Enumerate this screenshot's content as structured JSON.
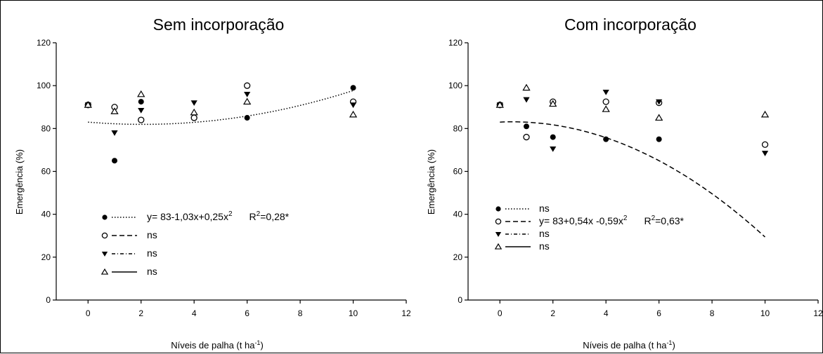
{
  "chart_data": [
    {
      "type": "scatter",
      "title": "Sem incorporação",
      "xlabel": "Níveis de palha (t ha",
      "xlabel_sup": "-1",
      "xlabel_end": ")",
      "ylabel": "Emergência (%)",
      "xlim": [
        -1.2,
        12
      ],
      "ylim": [
        0,
        120
      ],
      "x_ticks": [
        0,
        2,
        4,
        6,
        8,
        10,
        12
      ],
      "y_ticks": [
        0,
        20,
        40,
        60,
        80,
        100,
        120
      ],
      "grid": false,
      "legend_position": "bottom-left",
      "series": [
        {
          "marker": "filled-circle",
          "line_style": "dotted",
          "x": [
            0,
            1,
            2,
            4,
            6,
            10
          ],
          "y": [
            91,
            65,
            92.5,
            85,
            85,
            99
          ],
          "fit": {
            "a": 83,
            "b": -1.03,
            "c": 0.25,
            "range": [
              0,
              10
            ]
          },
          "legend_text": "y= 83-1,03x+0,25x",
          "legend_sup": "2",
          "legend_r2": "R",
          "legend_r2_sup": "2",
          "legend_r2_value": "=0,28*"
        },
        {
          "marker": "open-circle",
          "line_style": "dashed",
          "x": [
            0,
            1,
            2,
            4,
            6,
            10
          ],
          "y": [
            91,
            90,
            84,
            85,
            100,
            92.5
          ],
          "legend_text": "ns"
        },
        {
          "marker": "filled-triangle-down",
          "line_style": "dash-dot",
          "x": [
            0,
            1,
            2,
            4,
            6,
            10
          ],
          "y": [
            91,
            78,
            88.5,
            92,
            96,
            91
          ],
          "legend_text": "ns"
        },
        {
          "marker": "open-triangle-up",
          "line_style": "solid",
          "x": [
            0,
            1,
            2,
            4,
            6,
            10
          ],
          "y": [
            91,
            88,
            96,
            87.5,
            92.5,
            86.5
          ],
          "legend_text": "ns"
        }
      ]
    },
    {
      "type": "scatter",
      "title": "Com incorporação",
      "xlabel": "Níveis de palha (t ha",
      "xlabel_sup": "-1",
      "xlabel_end": ")",
      "ylabel": "Emergência (%)",
      "xlim": [
        -1.2,
        12
      ],
      "ylim": [
        0,
        120
      ],
      "x_ticks": [
        0,
        2,
        4,
        6,
        8,
        10,
        12
      ],
      "y_ticks": [
        0,
        20,
        40,
        60,
        80,
        100,
        120
      ],
      "grid": false,
      "legend_position": "bottom-left",
      "series": [
        {
          "marker": "filled-circle",
          "line_style": "dotted",
          "x": [
            0,
            1,
            2,
            4,
            6,
            10
          ],
          "y": [
            91,
            81,
            76,
            75,
            75,
            72.5
          ],
          "legend_text": "ns"
        },
        {
          "marker": "open-circle",
          "line_style": "dashed",
          "x": [
            0,
            1,
            2,
            4,
            6,
            10
          ],
          "y": [
            91,
            76,
            92.5,
            92.5,
            92,
            72.5
          ],
          "fit": {
            "a": 83,
            "b": 0.54,
            "c": -0.59,
            "range": [
              0,
              10
            ]
          },
          "legend_text": "y= 83+0,54x -0,59x",
          "legend_sup": "2",
          "legend_r2": "R",
          "legend_r2_sup": "2",
          "legend_r2_value": "=0,63*"
        },
        {
          "marker": "filled-triangle-down",
          "line_style": "dash-dot",
          "x": [
            0,
            1,
            2,
            4,
            6,
            10
          ],
          "y": [
            91,
            93.5,
            70.5,
            97,
            92.5,
            68.5
          ],
          "legend_text": "ns"
        },
        {
          "marker": "open-triangle-up",
          "line_style": "solid",
          "x": [
            0,
            1,
            2,
            4,
            6,
            10
          ],
          "y": [
            91,
            99,
            91.5,
            89,
            85,
            86.5
          ],
          "legend_text": "ns"
        }
      ]
    }
  ]
}
